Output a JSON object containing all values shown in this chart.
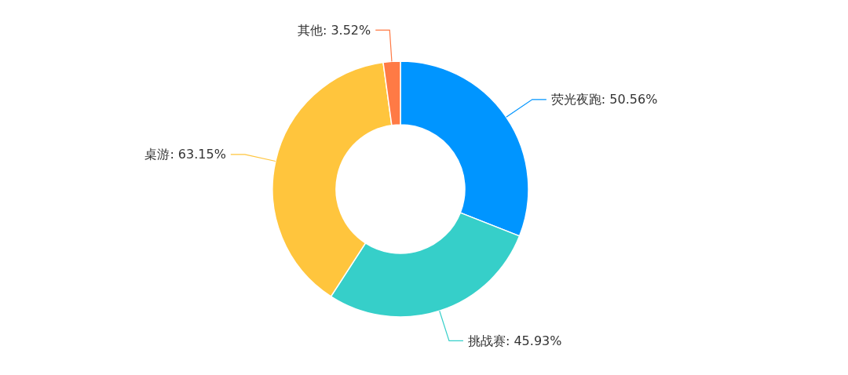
{
  "chart_data": {
    "type": "donut",
    "categories": [
      "荧光夜跑",
      "挑战赛",
      "桌游",
      "其他"
    ],
    "values": [
      50.56,
      45.93,
      63.15,
      3.52
    ],
    "colors": [
      "#0095ff",
      "#36cfc9",
      "#ffc53d",
      "#ff7a45"
    ],
    "value_labels": [
      "50.56%",
      "45.93%",
      "63.15%",
      "3.52%"
    ]
  }
}
